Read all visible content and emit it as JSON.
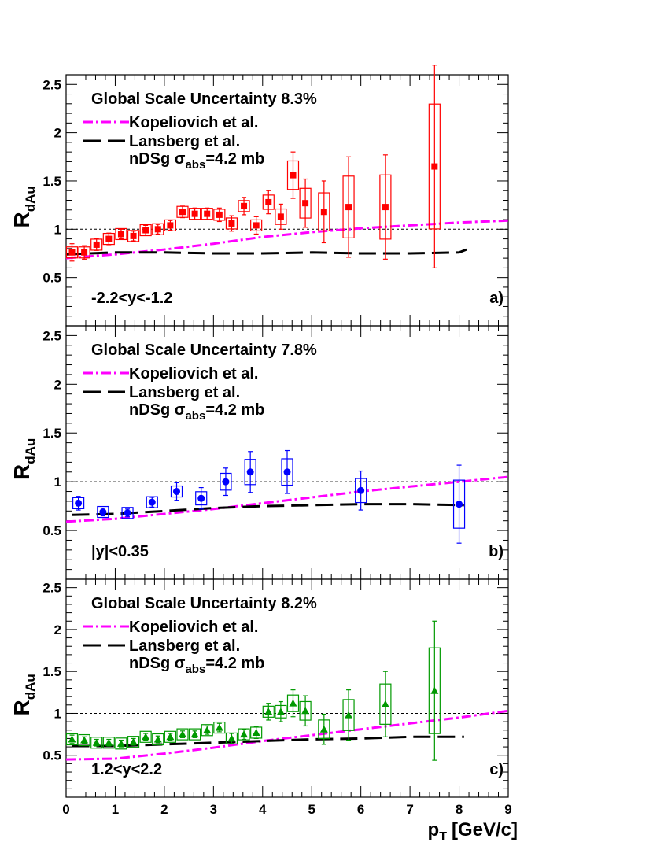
{
  "chart_data": [
    {
      "type": "scatter",
      "panel_label": "a)",
      "rapidity_label": "-2.2<y<-1.2",
      "global_uncertainty": "Global Scale Uncertainty 8.3%",
      "ylabel_main": "R",
      "ylabel_sub": "dAu",
      "xlim": [
        0,
        9
      ],
      "ylim": [
        0,
        2.6
      ],
      "yticks": [
        "0.5",
        "1",
        "1.5",
        "2",
        "2.5"
      ],
      "reference_line": 1,
      "marker": "square",
      "color": "#ff0000",
      "points": [
        {
          "x": 0.12,
          "y": 0.76,
          "err": 0.09
        },
        {
          "x": 0.37,
          "y": 0.76,
          "err": 0.07
        },
        {
          "x": 0.62,
          "y": 0.84,
          "err": 0.06
        },
        {
          "x": 0.87,
          "y": 0.9,
          "err": 0.06
        },
        {
          "x": 1.12,
          "y": 0.95,
          "err": 0.05
        },
        {
          "x": 1.37,
          "y": 0.93,
          "err": 0.05
        },
        {
          "x": 1.62,
          "y": 0.99,
          "err": 0.05
        },
        {
          "x": 1.87,
          "y": 1.0,
          "err": 0.05
        },
        {
          "x": 2.12,
          "y": 1.04,
          "err": 0.05
        },
        {
          "x": 2.37,
          "y": 1.18,
          "err": 0.06
        },
        {
          "x": 2.62,
          "y": 1.16,
          "err": 0.06
        },
        {
          "x": 2.87,
          "y": 1.16,
          "err": 0.06
        },
        {
          "x": 3.12,
          "y": 1.15,
          "err": 0.07
        },
        {
          "x": 3.37,
          "y": 1.06,
          "err": 0.08
        },
        {
          "x": 3.62,
          "y": 1.24,
          "err": 0.09
        },
        {
          "x": 3.87,
          "y": 1.04,
          "err": 0.09
        },
        {
          "x": 4.12,
          "y": 1.28,
          "err": 0.12
        },
        {
          "x": 4.37,
          "y": 1.13,
          "err": 0.13
        },
        {
          "x": 4.62,
          "y": 1.56,
          "err": 0.24
        },
        {
          "x": 4.87,
          "y": 1.27,
          "err": 0.25
        },
        {
          "x": 5.25,
          "y": 1.18,
          "err": 0.32
        },
        {
          "x": 5.75,
          "y": 1.23,
          "err": 0.52
        },
        {
          "x": 6.5,
          "y": 1.23,
          "err": 0.54
        },
        {
          "x": 7.5,
          "y": 1.65,
          "err": 1.05
        }
      ],
      "theory": [
        {
          "name": "Kopeliovich et al.",
          "style": "dashdot",
          "color": "#ff00ff",
          "x": [
            0,
            1,
            2,
            3,
            4,
            5,
            6,
            7,
            8,
            9
          ],
          "y": [
            0.7,
            0.74,
            0.79,
            0.85,
            0.92,
            0.97,
            1.01,
            1.04,
            1.07,
            1.09
          ]
        },
        {
          "name": "Lansberg et al.",
          "name2": "nDSg",
          "sigma": "σ",
          "sigma_sub": "abs",
          "sigma_val": "=4.2 mb",
          "style": "longdash",
          "color": "#000000",
          "x": [
            0,
            1,
            2,
            3,
            4,
            5,
            6,
            7,
            8,
            8.15
          ],
          "y": [
            0.74,
            0.76,
            0.76,
            0.75,
            0.75,
            0.76,
            0.75,
            0.75,
            0.76,
            0.79
          ]
        }
      ]
    },
    {
      "type": "scatter",
      "panel_label": "b)",
      "rapidity_label": "|y|<0.35",
      "global_uncertainty": "Global Scale Uncertainty 7.8%",
      "ylabel_main": "R",
      "ylabel_sub": "dAu",
      "xlim": [
        0,
        9
      ],
      "ylim": [
        0,
        2.6
      ],
      "yticks": [
        "0.5",
        "1",
        "1.5",
        "2",
        "2.5"
      ],
      "reference_line": 1,
      "marker": "circle",
      "color": "#0000ff",
      "points": [
        {
          "x": 0.25,
          "y": 0.78,
          "err": 0.07
        },
        {
          "x": 0.75,
          "y": 0.69,
          "err": 0.04
        },
        {
          "x": 1.25,
          "y": 0.68,
          "err": 0.04
        },
        {
          "x": 1.75,
          "y": 0.79,
          "err": 0.05
        },
        {
          "x": 2.25,
          "y": 0.9,
          "err": 0.09
        },
        {
          "x": 2.75,
          "y": 0.83,
          "err": 0.11
        },
        {
          "x": 3.25,
          "y": 1.0,
          "err": 0.14
        },
        {
          "x": 3.75,
          "y": 1.1,
          "err": 0.21
        },
        {
          "x": 4.5,
          "y": 1.1,
          "err": 0.22
        },
        {
          "x": 6.0,
          "y": 0.91,
          "err": 0.2
        },
        {
          "x": 8.0,
          "y": 0.77,
          "err": 0.4
        }
      ],
      "theory": [
        {
          "name": "Kopeliovich et al.",
          "style": "dashdot",
          "color": "#ff00ff",
          "x": [
            0,
            1,
            2,
            3,
            4,
            5,
            6,
            7,
            8,
            9
          ],
          "y": [
            0.59,
            0.62,
            0.67,
            0.72,
            0.78,
            0.84,
            0.9,
            0.95,
            1.0,
            1.05
          ]
        },
        {
          "name": "Lansberg et al.",
          "name2": "nDSg",
          "sigma": "σ",
          "sigma_sub": "abs",
          "sigma_val": "=4.2 mb",
          "style": "longdash",
          "color": "#000000",
          "x": [
            0.12,
            1,
            2,
            3,
            4,
            5,
            6,
            7,
            8.1
          ],
          "y": [
            0.66,
            0.67,
            0.7,
            0.73,
            0.75,
            0.76,
            0.77,
            0.77,
            0.76
          ]
        }
      ]
    },
    {
      "type": "scatter",
      "panel_label": "c)",
      "rapidity_label": "1.2<y<2.2",
      "global_uncertainty": "Global Scale Uncertainty 8.2%",
      "ylabel_main": "R",
      "ylabel_sub": "dAu",
      "xlabel_main": "p",
      "xlabel_sub": "T",
      "xlabel_unit": "[GeV/c]",
      "xlim": [
        0,
        9
      ],
      "ylim": [
        0,
        2.6
      ],
      "xticks": [
        "0",
        "1",
        "2",
        "3",
        "4",
        "5",
        "6",
        "7",
        "8",
        "9"
      ],
      "yticks": [
        "0.5",
        "1",
        "1.5",
        "2",
        "2.5"
      ],
      "reference_line": 1,
      "marker": "triangle",
      "color": "#009900",
      "points": [
        {
          "x": 0.12,
          "y": 0.69,
          "err": 0.05
        },
        {
          "x": 0.37,
          "y": 0.68,
          "err": 0.04
        },
        {
          "x": 0.62,
          "y": 0.65,
          "err": 0.04
        },
        {
          "x": 0.87,
          "y": 0.65,
          "err": 0.04
        },
        {
          "x": 1.12,
          "y": 0.64,
          "err": 0.04
        },
        {
          "x": 1.37,
          "y": 0.66,
          "err": 0.04
        },
        {
          "x": 1.62,
          "y": 0.72,
          "err": 0.04
        },
        {
          "x": 1.87,
          "y": 0.69,
          "err": 0.04
        },
        {
          "x": 2.12,
          "y": 0.72,
          "err": 0.04
        },
        {
          "x": 2.37,
          "y": 0.75,
          "err": 0.04
        },
        {
          "x": 2.62,
          "y": 0.75,
          "err": 0.04
        },
        {
          "x": 2.87,
          "y": 0.8,
          "err": 0.05
        },
        {
          "x": 3.12,
          "y": 0.83,
          "err": 0.05
        },
        {
          "x": 3.37,
          "y": 0.7,
          "err": 0.06
        },
        {
          "x": 3.62,
          "y": 0.75,
          "err": 0.06
        },
        {
          "x": 3.87,
          "y": 0.77,
          "err": 0.07
        },
        {
          "x": 4.12,
          "y": 1.02,
          "err": 0.1
        },
        {
          "x": 4.37,
          "y": 1.02,
          "err": 0.12
        },
        {
          "x": 4.62,
          "y": 1.12,
          "err": 0.16
        },
        {
          "x": 4.87,
          "y": 1.03,
          "err": 0.18
        },
        {
          "x": 5.25,
          "y": 0.81,
          "err": 0.18
        },
        {
          "x": 5.75,
          "y": 0.98,
          "err": 0.3
        },
        {
          "x": 6.5,
          "y": 1.11,
          "err": 0.39
        },
        {
          "x": 7.5,
          "y": 1.27,
          "err": 0.83
        }
      ],
      "theory": [
        {
          "name": "Kopeliovich et al.",
          "style": "dashdot",
          "color": "#ff00ff",
          "x": [
            0,
            1,
            2,
            3,
            4,
            5,
            6,
            7,
            8,
            9
          ],
          "y": [
            0.45,
            0.46,
            0.52,
            0.59,
            0.67,
            0.74,
            0.81,
            0.88,
            0.95,
            1.03
          ]
        },
        {
          "name": "Lansberg et al.",
          "name2": "nDSg",
          "sigma": "σ",
          "sigma_sub": "abs",
          "sigma_val": "=4.2 mb",
          "style": "longdash",
          "color": "#000000",
          "x": [
            0.12,
            1,
            2,
            3,
            4,
            5,
            6,
            7,
            8.1
          ],
          "y": [
            0.61,
            0.61,
            0.63,
            0.65,
            0.67,
            0.69,
            0.7,
            0.72,
            0.72
          ]
        }
      ]
    }
  ]
}
